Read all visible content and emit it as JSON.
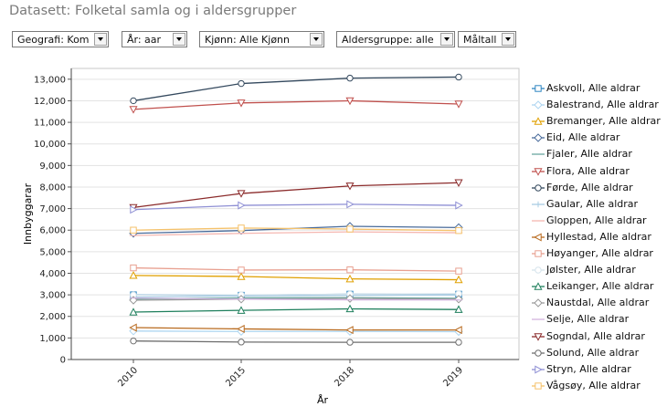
{
  "page": {
    "title": "Datasett: Folketal samla og i aldersgrupper"
  },
  "filters": [
    {
      "label": "Geografi: Kom"
    },
    {
      "label": "År: aar"
    },
    {
      "label": "Kjønn: Alle Kjønn"
    },
    {
      "label": "Aldersgruppe: alle"
    },
    {
      "label": "Måltall"
    }
  ],
  "chart_data": {
    "type": "line",
    "title": "",
    "xlabel": "År",
    "ylabel": "Innbyggarar",
    "x": [
      "2010",
      "2015",
      "2018",
      "2019"
    ],
    "ylim": [
      0,
      13500
    ],
    "yticks": [
      0,
      1000,
      2000,
      3000,
      4000,
      5000,
      6000,
      7000,
      8000,
      9000,
      10000,
      11000,
      12000,
      13000
    ],
    "ytick_labels": [
      "0",
      "1,000",
      "2,000",
      "3,000",
      "4,000",
      "5,000",
      "6,000",
      "7,000",
      "8,000",
      "9,000",
      "10,000",
      "11,000",
      "12,000",
      "13,000"
    ],
    "grid": "horizontal",
    "legend": "right",
    "series": [
      {
        "name": "Askvoll, Alle aldrar",
        "values": [
          3000,
          2980,
          3030,
          3030
        ],
        "color": "#2e86c1",
        "marker": "square"
      },
      {
        "name": "Balestrand, Alle aldrar",
        "values": [
          1320,
          1300,
          1300,
          1290
        ],
        "color": "#aed6f1",
        "marker": "diamond"
      },
      {
        "name": "Bremanger, Alle aldrar",
        "values": [
          3900,
          3850,
          3740,
          3700
        ],
        "color": "#e0a000",
        "marker": "triangle-up"
      },
      {
        "name": "Eid, Alle aldrar",
        "values": [
          5850,
          5980,
          6180,
          6120
        ],
        "color": "#4a6c9b",
        "marker": "diamond"
      },
      {
        "name": "Fjaler, Alle aldrar",
        "values": [
          2800,
          2860,
          2870,
          2840
        ],
        "color": "#6aa8a0",
        "marker": "line"
      },
      {
        "name": "Flora, Alle aldrar",
        "values": [
          11600,
          11900,
          12000,
          11850
        ],
        "color": "#c0504d",
        "marker": "triangle-down"
      },
      {
        "name": "Førde, Alle aldrar",
        "values": [
          12000,
          12800,
          13050,
          13100
        ],
        "color": "#34495e",
        "marker": "circle"
      },
      {
        "name": "Gaular, Alle aldrar",
        "values": [
          2900,
          2950,
          2980,
          2990
        ],
        "color": "#a9cce3",
        "marker": "plus"
      },
      {
        "name": "Gloppen, Alle aldrar",
        "values": [
          5750,
          5850,
          5920,
          5880
        ],
        "color": "#f5b7b1",
        "marker": "line"
      },
      {
        "name": "Hyllestad, Alle aldrar",
        "values": [
          1480,
          1420,
          1370,
          1370
        ],
        "color": "#b86a1e",
        "marker": "triangle-left"
      },
      {
        "name": "Høyanger, Alle aldrar",
        "values": [
          4250,
          4150,
          4160,
          4100
        ],
        "color": "#e8a090",
        "marker": "square"
      },
      {
        "name": "Jølster, Alle aldrar",
        "values": [
          2990,
          3000,
          3030,
          3050
        ],
        "color": "#d6e4ec",
        "marker": "circle"
      },
      {
        "name": "Leikanger, Alle aldrar",
        "values": [
          2200,
          2280,
          2350,
          2320
        ],
        "color": "#1e7f5c",
        "marker": "triangle-up"
      },
      {
        "name": "Naustdal, Alle aldrar",
        "values": [
          2750,
          2800,
          2830,
          2800
        ],
        "color": "#9a9a9a",
        "marker": "diamond"
      },
      {
        "name": "Selje, Alle aldrar",
        "values": [
          2850,
          2800,
          2770,
          2760
        ],
        "color": "#d2b4de",
        "marker": "line"
      },
      {
        "name": "Sogndal, Alle aldrar",
        "values": [
          7050,
          7700,
          8050,
          8200
        ],
        "color": "#8b2b2b",
        "marker": "triangle-down"
      },
      {
        "name": "Solund, Alle aldrar",
        "values": [
          860,
          810,
          800,
          800
        ],
        "color": "#6e6e6e",
        "marker": "circle"
      },
      {
        "name": "Stryn, Alle aldrar",
        "values": [
          6950,
          7150,
          7200,
          7150
        ],
        "color": "#8e8fd4",
        "marker": "triangle-right"
      },
      {
        "name": "Vågsøy, Alle aldrar",
        "values": [
          6000,
          6100,
          6050,
          5980
        ],
        "color": "#f5c26b",
        "marker": "square"
      }
    ]
  }
}
